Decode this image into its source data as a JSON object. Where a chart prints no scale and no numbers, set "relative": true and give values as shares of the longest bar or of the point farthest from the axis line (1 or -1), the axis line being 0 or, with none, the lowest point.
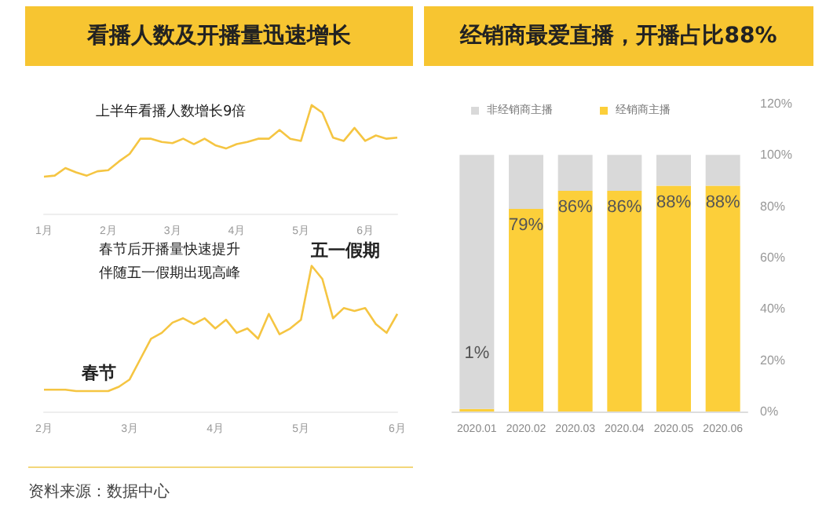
{
  "chart_data": [
    {
      "type": "line",
      "title": "看播人数及开播量迅速增长",
      "relative": true,
      "marker": "none",
      "color": "#f5c542",
      "categories": [
        "1月",
        null,
        null,
        null,
        null,
        null,
        "2月",
        null,
        null,
        null,
        null,
        null,
        "3月",
        null,
        null,
        null,
        null,
        null,
        "4月",
        null,
        null,
        null,
        null,
        null,
        "5月",
        null,
        null,
        null,
        null,
        null,
        "6月",
        null,
        null,
        null
      ],
      "values": [
        0.34,
        0.35,
        0.42,
        0.38,
        0.35,
        0.39,
        0.4,
        0.48,
        0.55,
        0.69,
        0.69,
        0.66,
        0.65,
        0.69,
        0.64,
        0.69,
        0.63,
        0.6,
        0.64,
        0.66,
        0.69,
        0.69,
        0.77,
        0.69,
        0.67,
        1.0,
        0.93,
        0.7,
        0.67,
        0.79,
        0.67,
        0.72,
        0.69,
        0.7
      ],
      "annotations": [
        "上半年看播人数增长9倍",
        "资料来源：数据中心"
      ]
    },
    {
      "type": "line",
      "relative": true,
      "marker": "none",
      "color": "#f5c542",
      "categories": [
        "2月",
        null,
        null,
        null,
        null,
        null,
        null,
        null,
        "3月",
        null,
        null,
        null,
        null,
        null,
        null,
        null,
        "4月",
        null,
        null,
        null,
        null,
        null,
        null,
        null,
        "5月",
        null,
        null,
        null,
        null,
        null,
        null,
        null,
        null,
        "6月"
      ],
      "values": [
        0.15,
        0.15,
        0.15,
        0.14,
        0.14,
        0.14,
        0.14,
        0.17,
        0.22,
        0.36,
        0.5,
        0.54,
        0.61,
        0.64,
        0.6,
        0.64,
        0.57,
        0.63,
        0.54,
        0.57,
        0.5,
        0.67,
        0.53,
        0.57,
        0.63,
        1.0,
        0.91,
        0.64,
        0.71,
        0.69,
        0.71,
        0.6,
        0.54,
        0.67
      ],
      "annotations": [
        "春节后开播量快速提升",
        "伴随五一假期出现高峰",
        "春节",
        "五一假期"
      ]
    },
    {
      "type": "bar",
      "title": "经销商最爱直播，开播占比88%",
      "stacked": true,
      "legend": "top",
      "grid": false,
      "categories": [
        "2020.01",
        "2020.02",
        "2020.03",
        "2020.04",
        "2020.05",
        "2020.06"
      ],
      "series": [
        {
          "name": "经销商主播",
          "color": "#fccf3a",
          "values": [
            1,
            79,
            86,
            86,
            88,
            88
          ],
          "value_labels": [
            "1%",
            "79%",
            "86%",
            "86%",
            "88%",
            "88%"
          ]
        },
        {
          "name": "非经销商主播",
          "color": "#d9d9d9",
          "values": [
            99,
            21,
            14,
            14,
            12,
            12
          ]
        }
      ],
      "ylim": [
        0,
        120
      ],
      "yticks": [
        {
          "value": 0,
          "label": "0%"
        },
        {
          "value": 20,
          "label": "20%"
        },
        {
          "value": 40,
          "label": "40%"
        },
        {
          "value": 60,
          "label": "60%"
        },
        {
          "value": 80,
          "label": "80%"
        },
        {
          "value": 100,
          "label": "100%"
        },
        {
          "value": 120,
          "label": "120%"
        }
      ]
    }
  ]
}
